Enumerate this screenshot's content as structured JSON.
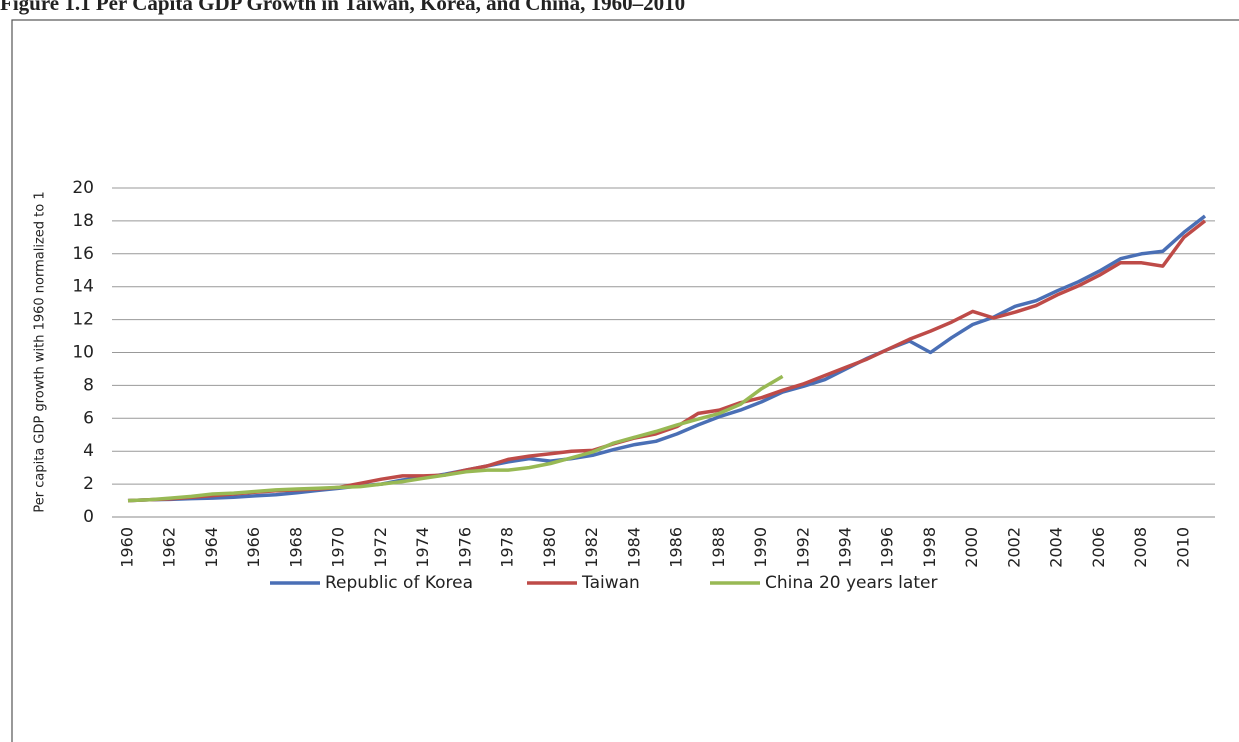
{
  "chart_data": {
    "type": "line",
    "title": "Figure 1.1 Per Capita GDP Growth in Taiwan, Korea, and China, 1960–2010",
    "y_label": "Per capita GDP growth with 1960 normalized to 1",
    "categories": [
      1960,
      null,
      1962,
      null,
      1964,
      null,
      1966,
      null,
      1968,
      null,
      1970,
      null,
      1972,
      null,
      1974,
      null,
      1976,
      null,
      1978,
      null,
      1980,
      null,
      1982,
      null,
      1984,
      null,
      1986,
      null,
      1988,
      null,
      1990,
      null,
      1992,
      null,
      1994,
      null,
      1996,
      null,
      1998,
      null,
      2000,
      null,
      2002,
      null,
      2004,
      null,
      2006,
      null,
      2008,
      null,
      2010,
      null
    ],
    "series": [
      {
        "name": "Republic of Korea",
        "color": "#4a6fb5",
        "values": [
          1.0,
          1.05,
          1.07,
          1.12,
          1.15,
          1.2,
          1.28,
          1.35,
          1.48,
          1.62,
          1.75,
          1.9,
          2.0,
          2.25,
          2.4,
          2.6,
          2.85,
          3.1,
          3.35,
          3.55,
          3.4,
          3.55,
          3.75,
          4.1,
          4.4,
          4.6,
          5.05,
          5.6,
          6.1,
          6.5,
          7.0,
          7.6,
          7.95,
          8.35,
          9.0,
          9.65,
          10.2,
          10.7,
          10.0,
          10.9,
          11.7,
          12.15,
          12.8,
          13.15,
          13.75,
          14.3,
          14.95,
          15.7,
          16.0,
          16.15,
          17.3,
          18.3
        ]
      },
      {
        "name": "Taiwan",
        "color": "#be4b48",
        "values": [
          1.0,
          1.05,
          1.1,
          1.2,
          1.3,
          1.4,
          1.5,
          1.6,
          1.65,
          1.7,
          1.8,
          2.05,
          2.3,
          2.5,
          2.5,
          2.55,
          2.85,
          3.1,
          3.5,
          3.7,
          3.85,
          4.0,
          4.05,
          4.45,
          4.8,
          5.05,
          5.5,
          6.3,
          6.5,
          6.95,
          7.25,
          7.7,
          8.1,
          8.6,
          9.1,
          9.6,
          10.2,
          10.8,
          11.3,
          11.85,
          12.5,
          12.1,
          12.45,
          12.85,
          13.5,
          14.05,
          14.7,
          15.45,
          15.45,
          15.25,
          17.0,
          18.0
        ]
      },
      {
        "name": "China 20 years later",
        "color": "#98b954",
        "values": [
          1.0,
          1.05,
          1.15,
          1.25,
          1.4,
          1.45,
          1.55,
          1.65,
          1.7,
          1.75,
          1.8,
          1.85,
          2.0,
          2.15,
          2.35,
          2.55,
          2.75,
          2.85,
          2.85,
          3.0,
          3.25,
          3.6,
          3.95,
          4.5,
          4.85,
          5.2,
          5.6,
          5.95,
          6.3,
          6.85,
          7.8,
          8.55,
          null,
          null,
          null,
          null,
          null,
          null,
          null,
          null,
          null,
          null,
          null,
          null,
          null,
          null,
          null,
          null,
          null,
          null,
          null,
          null
        ]
      }
    ],
    "ylim": [
      0,
      20
    ],
    "yticks": [
      0,
      2,
      4,
      6,
      8,
      10,
      12,
      14,
      16,
      18,
      20
    ],
    "grid": true,
    "legend": "bottom"
  }
}
